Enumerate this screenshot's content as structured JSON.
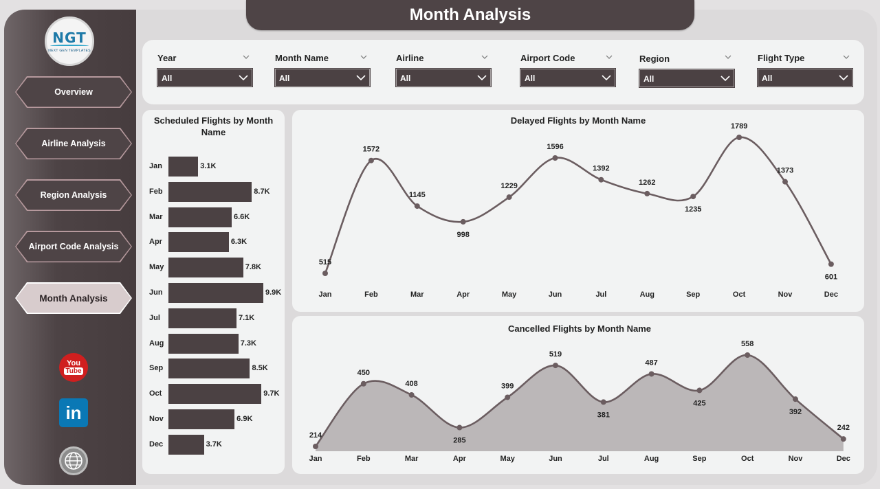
{
  "header": {
    "title": "Month Analysis"
  },
  "logo": {
    "text": "NGT",
    "subtitle": "NEXT GEN TEMPLATES"
  },
  "sidebar": {
    "items": [
      {
        "label": "Overview",
        "active": false
      },
      {
        "label": "Airline Analysis",
        "active": false
      },
      {
        "label": "Region Analysis",
        "active": false
      },
      {
        "label": "Airport Code Analysis",
        "active": false
      },
      {
        "label": "Month Analysis",
        "active": true
      }
    ],
    "social": [
      {
        "icon": "youtube-icon",
        "text_top": "You",
        "text_bottom": "Tube"
      },
      {
        "icon": "linkedin-icon",
        "text": "in"
      },
      {
        "icon": "website-icon"
      }
    ]
  },
  "filters": [
    {
      "label": "Year",
      "value": "All"
    },
    {
      "label": "Month Name",
      "value": "All"
    },
    {
      "label": "Airline",
      "value": "All"
    },
    {
      "label": "Airport Code",
      "value": "All"
    },
    {
      "label": "Region",
      "value": "All"
    },
    {
      "label": "Flight Type",
      "value": "All"
    }
  ],
  "chart_data": [
    {
      "type": "bar",
      "orientation": "horizontal",
      "title": "Scheduled Flights by Month Name",
      "categories": [
        "Jan",
        "Feb",
        "Mar",
        "Apr",
        "May",
        "Jun",
        "Jul",
        "Aug",
        "Sep",
        "Oct",
        "Nov",
        "Dec"
      ],
      "values": [
        3100,
        8700,
        6600,
        6300,
        7800,
        9900,
        7100,
        7300,
        8500,
        9700,
        6900,
        3700
      ],
      "labels": [
        "3.1K",
        "8.7K",
        "6.6K",
        "6.3K",
        "7.8K",
        "9.9K",
        "7.1K",
        "7.3K",
        "8.5K",
        "9.7K",
        "6.9K",
        "3.7K"
      ],
      "color": "#4b4143"
    },
    {
      "type": "line",
      "title": "Delayed Flights by Month Name",
      "categories": [
        "Jan",
        "Feb",
        "Mar",
        "Apr",
        "May",
        "Jun",
        "Jul",
        "Aug",
        "Sep",
        "Oct",
        "Nov",
        "Dec"
      ],
      "values": [
        515,
        1572,
        1145,
        998,
        1229,
        1596,
        1392,
        1262,
        1235,
        1789,
        1373,
        601
      ],
      "color": "#6b5d60"
    },
    {
      "type": "area",
      "title": "Cancelled Flights by Month Name",
      "categories": [
        "Jan",
        "Feb",
        "Mar",
        "Apr",
        "May",
        "Jun",
        "Jul",
        "Aug",
        "Sep",
        "Oct",
        "Nov",
        "Dec"
      ],
      "values": [
        214,
        450,
        408,
        285,
        399,
        519,
        381,
        487,
        425,
        558,
        392,
        242
      ],
      "color": "#6b5d60",
      "fill": "#bbb7b8"
    }
  ]
}
